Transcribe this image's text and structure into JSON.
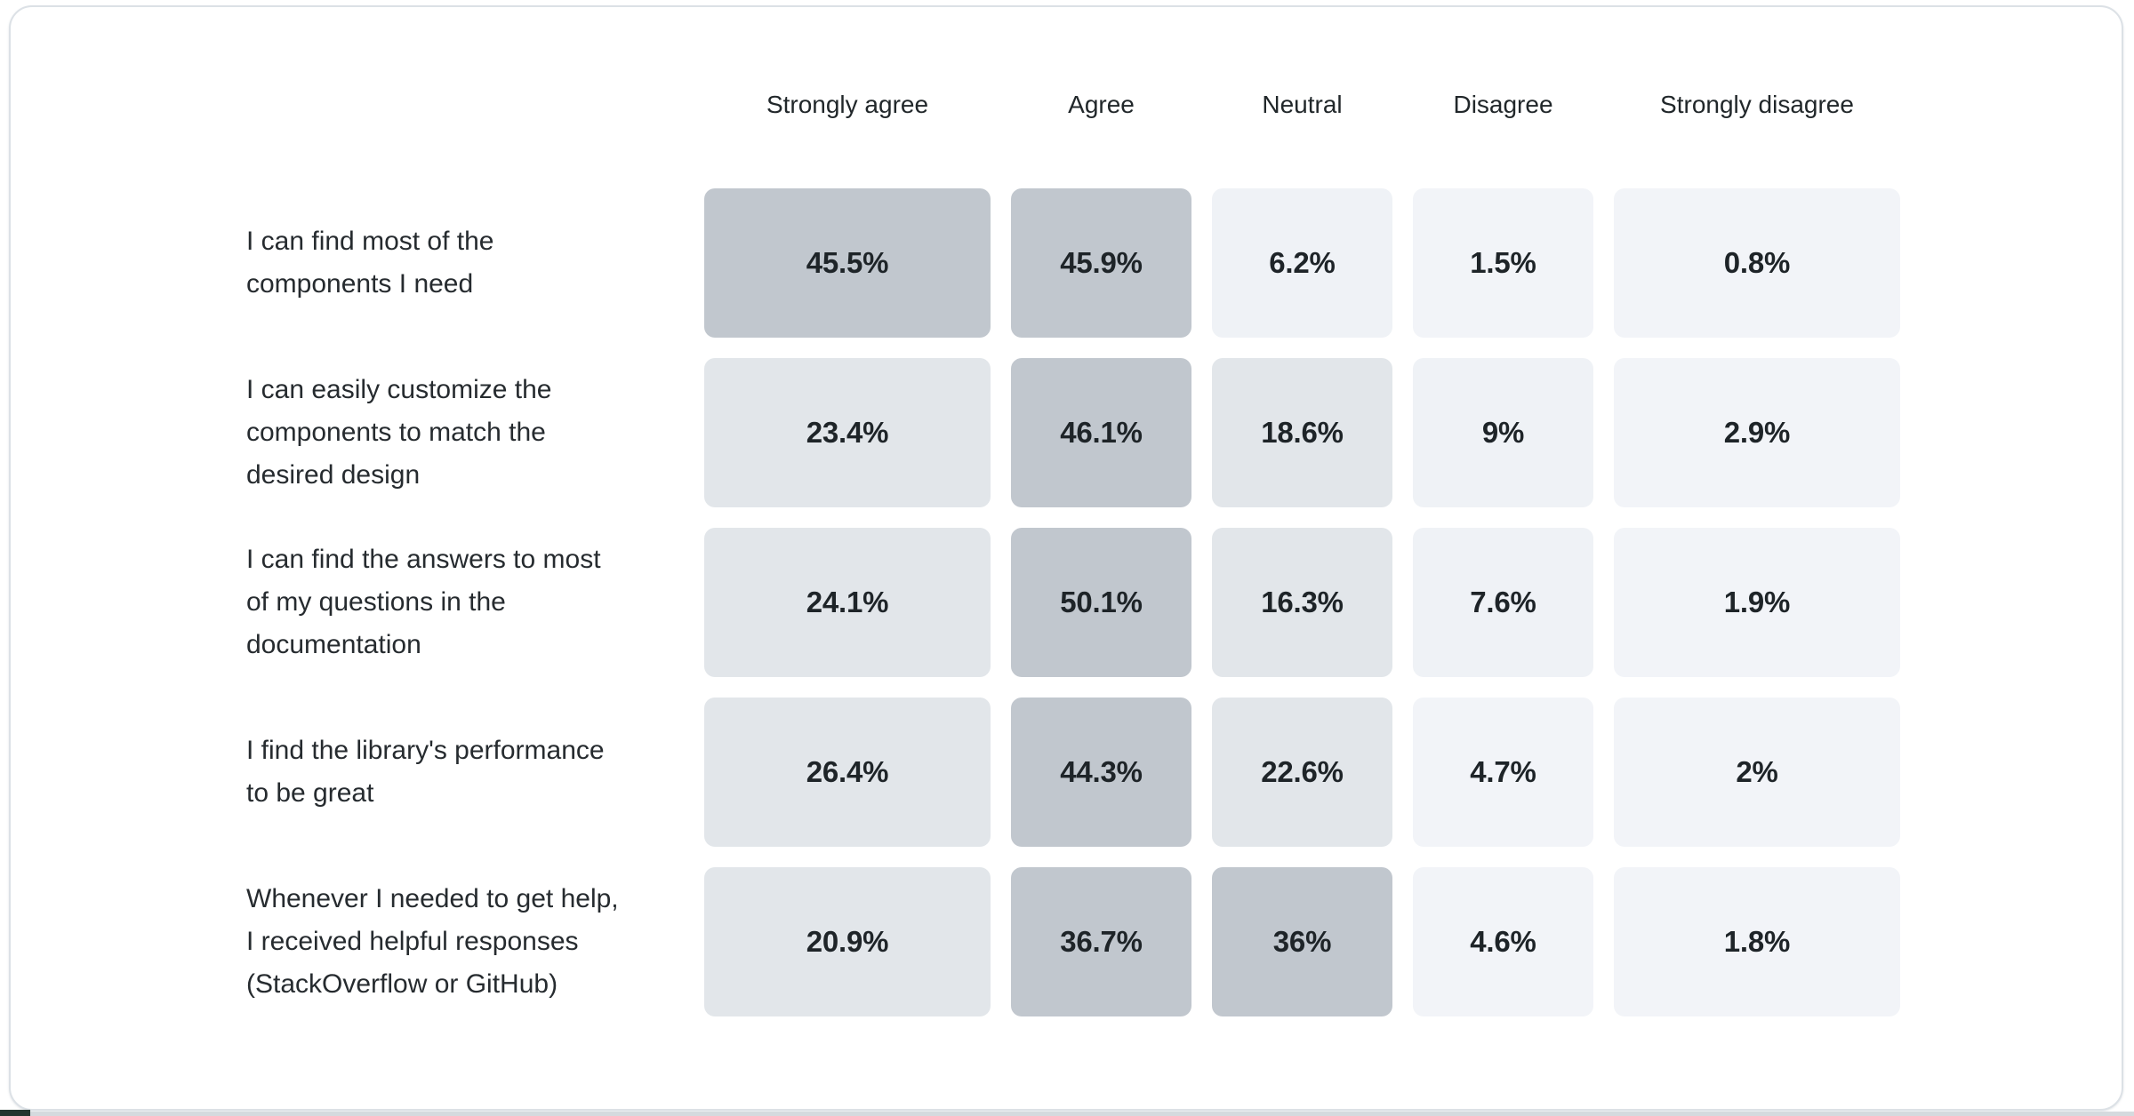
{
  "colors": {
    "page_background": "#ffffff",
    "card_background": "#ffffff",
    "card_border": "#dce1e6",
    "bottom_strip": "#d5dade",
    "corner_notch": "#22372f",
    "header_text": "#21272a",
    "label_text": "#262b2f",
    "value_text": "#1e2428",
    "scale": [
      {
        "min": 30,
        "color": "#c1c7ce"
      },
      {
        "min": 12,
        "color": "#e2e6ea"
      },
      {
        "min": 5,
        "color": "#eff2f6"
      },
      {
        "min": 0,
        "color": "#f2f4f8"
      }
    ]
  },
  "chart_data": {
    "type": "heatmap",
    "title": "",
    "legend_position": "none",
    "value_range": [
      0,
      50.1
    ],
    "columns": [
      "Strongly agree",
      "Agree",
      "Neutral",
      "Disagree",
      "Strongly disagree"
    ],
    "rows": [
      {
        "label": "I can find most of the components I need",
        "label_lines": [
          "I can find most of the",
          "components I need"
        ],
        "values": [
          45.5,
          45.9,
          6.2,
          1.5,
          0.8
        ],
        "display": [
          "45.5%",
          "45.9%",
          "6.2%",
          "1.5%",
          "0.8%"
        ]
      },
      {
        "label": "I can easily customize the components to match the desired design",
        "label_lines": [
          "I can easily customize the",
          "components to match the",
          "desired design"
        ],
        "values": [
          23.4,
          46.1,
          18.6,
          9,
          2.9
        ],
        "display": [
          "23.4%",
          "46.1%",
          "18.6%",
          "9%",
          "2.9%"
        ]
      },
      {
        "label": "I can find the answers to most of my questions in the documentation",
        "label_lines": [
          "I can find the answers to most",
          "of my questions in the",
          "documentation"
        ],
        "values": [
          24.1,
          50.1,
          16.3,
          7.6,
          1.9
        ],
        "display": [
          "24.1%",
          "50.1%",
          "16.3%",
          "7.6%",
          "1.9%"
        ]
      },
      {
        "label": "I find the library's performance to be great",
        "label_lines": [
          "I find the library's performance",
          "to be great"
        ],
        "values": [
          26.4,
          44.3,
          22.6,
          4.7,
          2
        ],
        "display": [
          "26.4%",
          "44.3%",
          "22.6%",
          "4.7%",
          "2%"
        ]
      },
      {
        "label": "Whenever I needed to get help, I received helpful responses (StackOverflow or GitHub)",
        "label_lines": [
          "Whenever I needed to get help,",
          "I received helpful responses",
          "(StackOverflow or GitHub)"
        ],
        "values": [
          20.9,
          36.7,
          36,
          4.6,
          1.8
        ],
        "display": [
          "20.9%",
          "36.7%",
          "36%",
          "4.6%",
          "1.8%"
        ]
      }
    ]
  }
}
